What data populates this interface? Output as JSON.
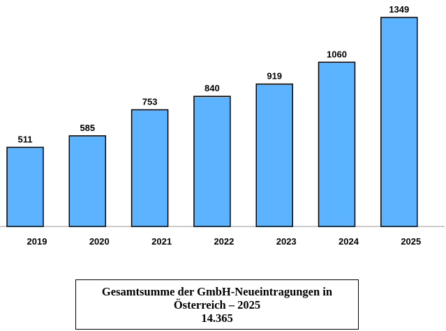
{
  "chart_data": {
    "type": "bar",
    "categories": [
      "2019",
      "2020",
      "2021",
      "2022",
      "2023",
      "2024",
      "2025"
    ],
    "values": [
      511,
      585,
      753,
      840,
      919,
      1060,
      1349
    ],
    "title": "",
    "xlabel": "",
    "ylabel": "",
    "ylim": [
      0,
      1349
    ],
    "grid": false,
    "bar_color": "#5cb3ff"
  },
  "summary": {
    "line1": "Gesamtsumme der GmbH-Neueintragungen in",
    "line2": "Österreich – 2025",
    "total": "14.365"
  }
}
